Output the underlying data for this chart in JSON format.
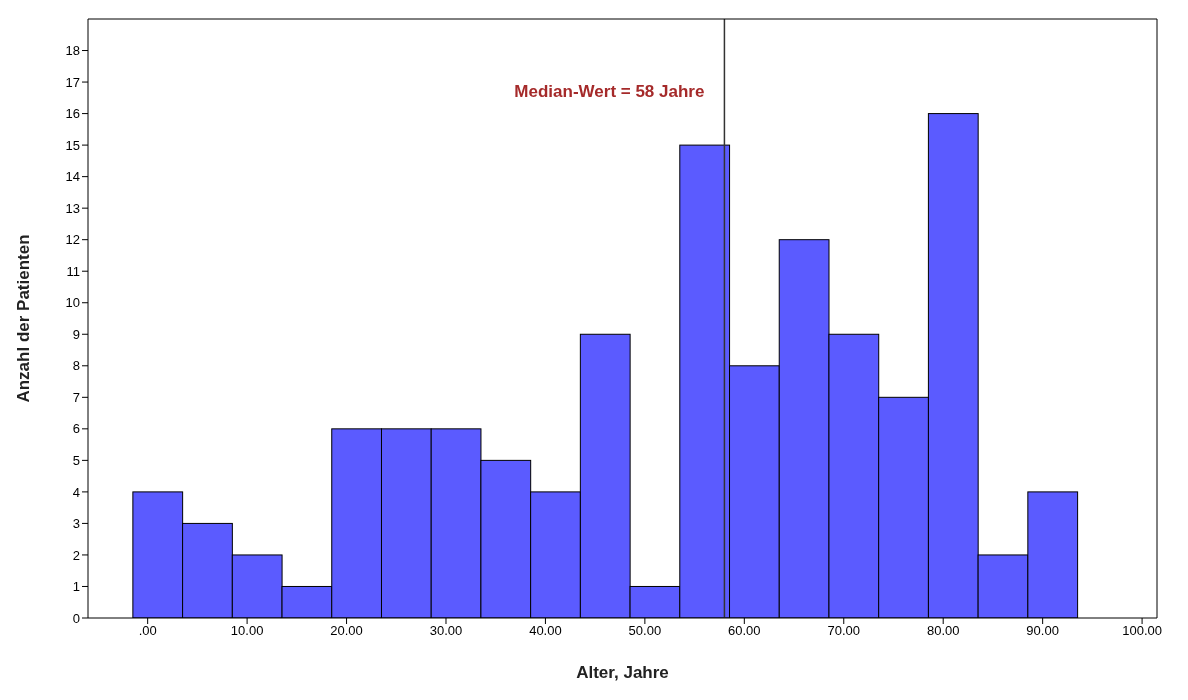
{
  "chart_data": {
    "type": "histogram",
    "xlabel": "Alter, Jahre",
    "ylabel": "Anzahl der Patienten",
    "bins": [
      -1.5,
      3.5,
      8.5,
      13.5,
      18.5,
      23.5,
      28.5,
      33.5,
      38.5,
      43.5,
      48.5,
      53.5,
      58.5,
      63.5,
      68.5,
      73.5,
      78.5,
      83.5,
      88.5,
      93.5
    ],
    "values": [
      4,
      3,
      2,
      1,
      6,
      6,
      6,
      5,
      4,
      9,
      1,
      15,
      8,
      12,
      9,
      7,
      16,
      2,
      4
    ],
    "color": "#5b5bff",
    "xlim": [
      -6,
      101.5
    ],
    "xticks": [
      {
        "value": 0,
        "label": ".00"
      },
      {
        "value": 10,
        "label": "10.00"
      },
      {
        "value": 20,
        "label": "20.00"
      },
      {
        "value": 30,
        "label": "30.00"
      },
      {
        "value": 40,
        "label": "40.00"
      },
      {
        "value": 50,
        "label": "50.00"
      },
      {
        "value": 60,
        "label": "60.00"
      },
      {
        "value": 70,
        "label": "70.00"
      },
      {
        "value": 80,
        "label": "80.00"
      },
      {
        "value": 90,
        "label": "90.00"
      },
      {
        "value": 100,
        "label": "100.00"
      }
    ],
    "ylim": [
      0,
      19
    ],
    "yticks": [
      0,
      1,
      2,
      3,
      4,
      5,
      6,
      7,
      8,
      9,
      10,
      11,
      12,
      13,
      14,
      15,
      16,
      17,
      18
    ],
    "ref_lines": [
      {
        "axis": "x",
        "value": 58,
        "label": "Median-Wert = 58 Jahre",
        "color": "#333333"
      }
    ],
    "grid": false,
    "legend": false
  }
}
